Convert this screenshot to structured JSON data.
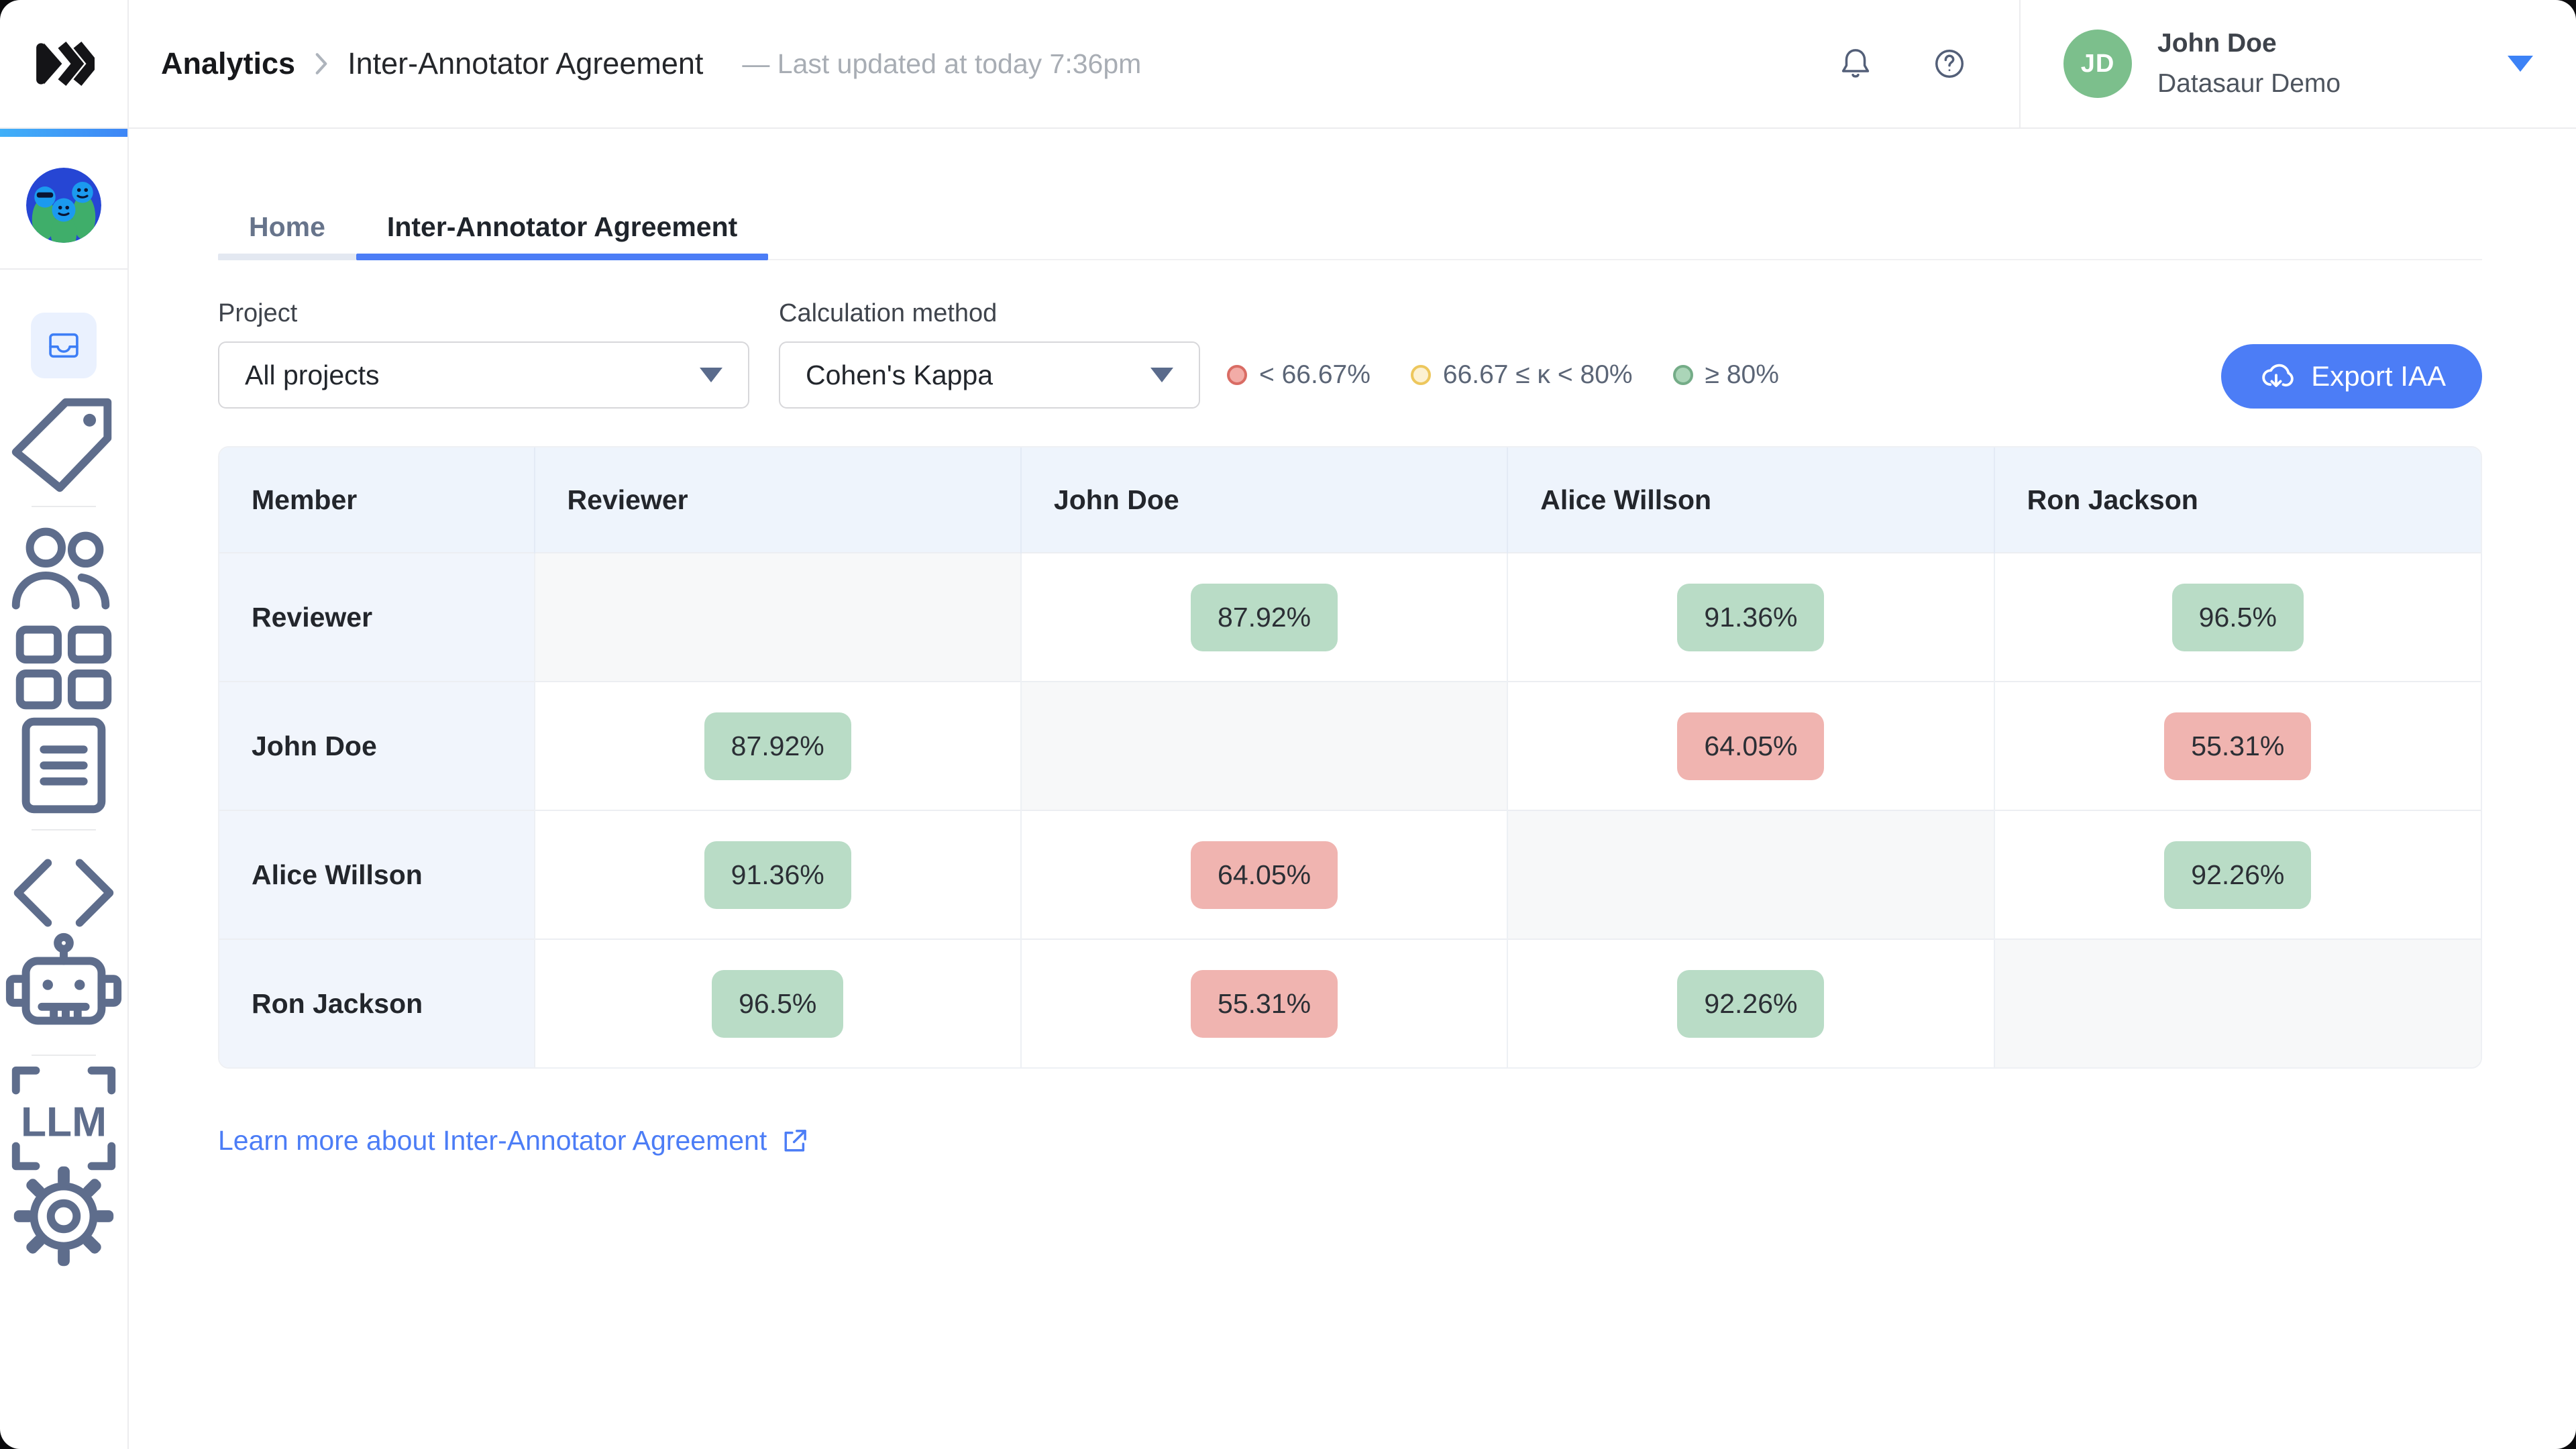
{
  "topbar": {
    "breadcrumb": {
      "section": "Analytics",
      "page": "Inter-Annotator Agreement"
    },
    "last_updated": "— Last updated at today 7:36pm",
    "user": {
      "initials": "JD",
      "name": "John Doe",
      "workspace": "Datasaur Demo",
      "avatar_color": "#7CBF8C"
    }
  },
  "sidebar": {
    "items": [
      {
        "type": "icon",
        "icon": "inbox",
        "active": true
      },
      {
        "type": "icon",
        "icon": "tag",
        "active": false
      },
      {
        "type": "divider"
      },
      {
        "type": "icon",
        "icon": "users",
        "active": false
      },
      {
        "type": "icon",
        "icon": "grid",
        "active": false
      },
      {
        "type": "icon",
        "icon": "document",
        "active": false
      },
      {
        "type": "divider"
      },
      {
        "type": "icon",
        "icon": "code",
        "active": false
      },
      {
        "type": "icon",
        "icon": "robot",
        "active": false
      },
      {
        "type": "divider"
      },
      {
        "type": "icon",
        "icon": "llm",
        "active": false,
        "text": "LLM"
      },
      {
        "type": "icon",
        "icon": "gear",
        "active": false
      }
    ]
  },
  "tabs": [
    {
      "label": "Home",
      "active": false
    },
    {
      "label": "Inter-Annotator Agreement",
      "active": true
    }
  ],
  "filters": {
    "project_label": "Project",
    "project_value": "All projects",
    "method_label": "Calculation method",
    "method_value": "Cohen's Kappa"
  },
  "legend": [
    {
      "label": "< 66.67%",
      "dot_fill": "#F2ACA7",
      "dot_border": "#D96C64"
    },
    {
      "label": "66.67 ≤ κ < 80%",
      "dot_fill": "#FCF1D2",
      "dot_border": "#EDC75D"
    },
    {
      "label": "≥ 80%",
      "dot_fill": "#ABD5B8",
      "dot_border": "#74AC87"
    }
  ],
  "export_button": {
    "label": "Export IAA",
    "color": "#4C7DF6"
  },
  "table": {
    "columns": [
      "Member",
      "Reviewer",
      "John Doe",
      "Alice Willson",
      "Ron Jackson"
    ],
    "badge_colors": {
      "high": "#B9DCC6",
      "low": "#F0B4B0"
    },
    "rows": [
      {
        "label": "Reviewer",
        "cells": [
          {
            "type": "self"
          },
          {
            "type": "value",
            "value": "87.92%",
            "level": "high"
          },
          {
            "type": "value",
            "value": "91.36%",
            "level": "high"
          },
          {
            "type": "value",
            "value": "96.5%",
            "level": "high"
          }
        ]
      },
      {
        "label": "John Doe",
        "cells": [
          {
            "type": "value",
            "value": "87.92%",
            "level": "high"
          },
          {
            "type": "self"
          },
          {
            "type": "value",
            "value": "64.05%",
            "level": "low"
          },
          {
            "type": "value",
            "value": "55.31%",
            "level": "low"
          }
        ]
      },
      {
        "label": "Alice Willson",
        "cells": [
          {
            "type": "value",
            "value": "91.36%",
            "level": "high"
          },
          {
            "type": "value",
            "value": "64.05%",
            "level": "low"
          },
          {
            "type": "self"
          },
          {
            "type": "value",
            "value": "92.26%",
            "level": "high"
          }
        ]
      },
      {
        "label": "Ron Jackson",
        "cells": [
          {
            "type": "value",
            "value": "96.5%",
            "level": "high"
          },
          {
            "type": "value",
            "value": "55.31%",
            "level": "low"
          },
          {
            "type": "value",
            "value": "92.26%",
            "level": "high"
          },
          {
            "type": "self"
          }
        ]
      }
    ]
  },
  "footer_link": {
    "label": "Learn more about Inter-Annotator Agreement"
  }
}
